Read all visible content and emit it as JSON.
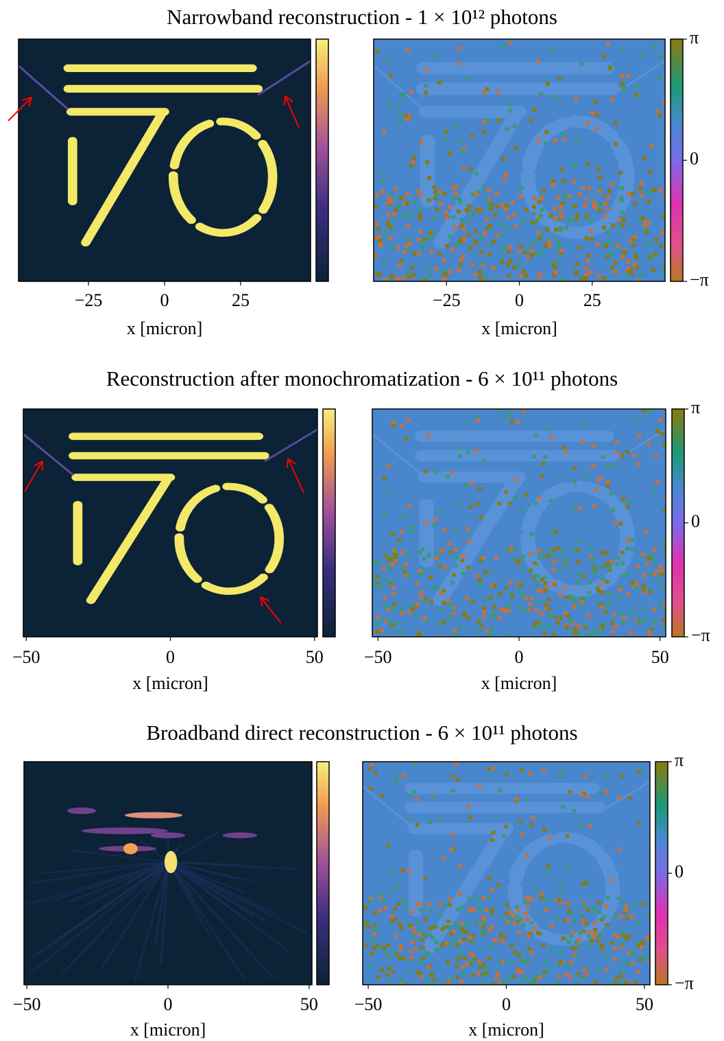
{
  "chart_data": [
    {
      "type": "image",
      "title": "Narrowband reconstruction - 1 × 10¹² photons",
      "xlabel": "x [micron]",
      "xlim": [
        -48,
        48
      ],
      "xticks": [
        {
          "value": -25,
          "label": "−25"
        },
        0,
        25
      ]
    },
    {
      "type": "phase",
      "xlabel": "x [micron]",
      "xlim": [
        -50,
        50
      ],
      "xticks": [
        {
          "value": -25,
          "label": "−25"
        },
        0,
        25
      ],
      "clim": [
        -3.14159,
        3.14159
      ],
      "cticks": [
        {
          "value": 3.14159,
          "label": "π"
        },
        0,
        {
          "value": -3.14159,
          "label": "−π"
        }
      ]
    },
    {
      "type": "image",
      "title": "Reconstruction after monochromatization - 6 × 10¹¹ photons",
      "xlabel": "x [micron]",
      "xlim": [
        -51,
        51
      ],
      "xticks": [
        {
          "value": -50,
          "label": "−50"
        },
        0,
        50
      ]
    },
    {
      "type": "phase",
      "xlabel": "x [micron]",
      "xlim": [
        -52,
        52
      ],
      "xticks": [
        {
          "value": -50,
          "label": "−50"
        },
        0,
        50
      ],
      "clim": [
        -3.14159,
        3.14159
      ],
      "cticks": [
        {
          "value": 3.14159,
          "label": "π"
        },
        0,
        {
          "value": -3.14159,
          "label": "−π"
        }
      ]
    },
    {
      "type": "image",
      "title": "Broadband direct reconstruction - 6 × 10¹¹ photons",
      "xlabel": "x [micron]",
      "xlim": [
        -51,
        51
      ],
      "xticks": [
        {
          "value": -50,
          "label": "−50"
        },
        0,
        50
      ]
    },
    {
      "type": "phase",
      "xlabel": "x [micron]",
      "xlim": [
        -52,
        52
      ],
      "xticks": [
        {
          "value": -50,
          "label": "−50"
        },
        0,
        50
      ],
      "clim": [
        -3.14159,
        3.14159
      ],
      "cticks": [
        {
          "value": 3.14159,
          "label": "π"
        },
        0,
        {
          "value": -3.14159,
          "label": "−π"
        }
      ]
    }
  ]
}
